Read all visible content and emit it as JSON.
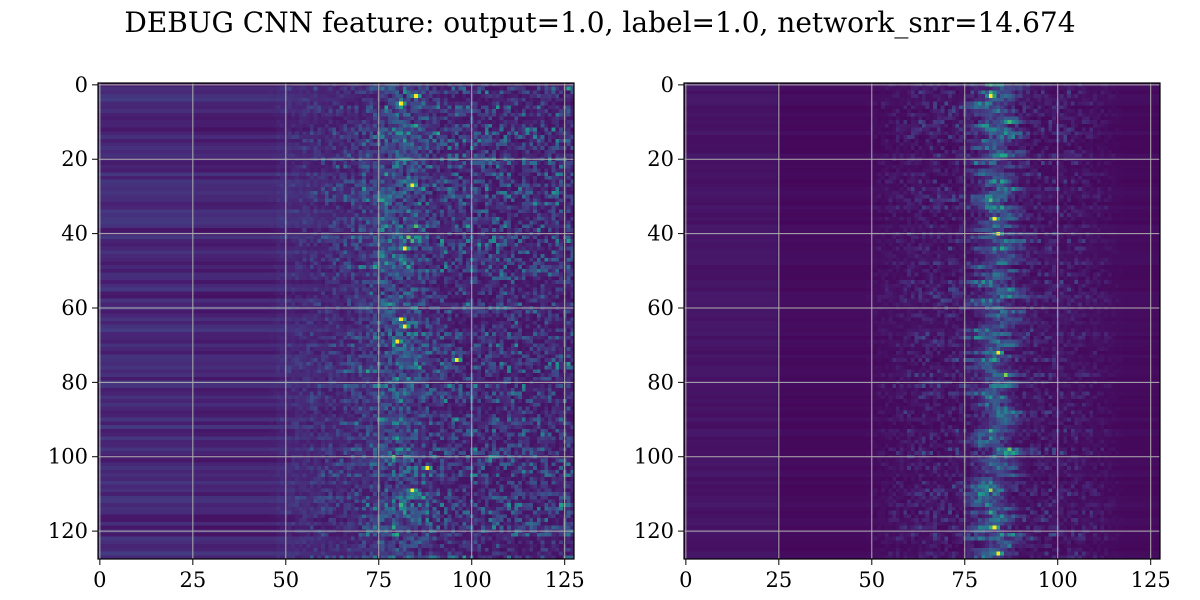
{
  "figure": {
    "title": "DEBUG CNN feature: output=1.0, label=1.0, network_snr=14.674"
  },
  "chart_data": [
    {
      "type": "heatmap",
      "title": "",
      "xlabel": "",
      "ylabel": "",
      "colormap": "viridis",
      "grid": true,
      "rows": 128,
      "cols": 128,
      "xlim": [
        -0.5,
        127.5
      ],
      "ylim": [
        127.5,
        -0.5
      ],
      "xticks": [
        0,
        25,
        50,
        75,
        100,
        125
      ],
      "yticks": [
        0,
        20,
        40,
        60,
        80,
        100,
        120
      ],
      "xtick_labels": [
        "0",
        "25",
        "50",
        "75",
        "100",
        "125"
      ],
      "ytick_labels": [
        "0",
        "20",
        "40",
        "60",
        "80",
        "100",
        "120"
      ],
      "bright_spots": [
        [
          81,
          5
        ],
        [
          85,
          3
        ],
        [
          84,
          27
        ],
        [
          82,
          44
        ],
        [
          81,
          63
        ],
        [
          82,
          65
        ],
        [
          80,
          69
        ],
        [
          88,
          103
        ],
        [
          84,
          109
        ],
        [
          96,
          74
        ]
      ]
    },
    {
      "type": "heatmap",
      "title": "",
      "xlabel": "",
      "ylabel": "",
      "colormap": "viridis",
      "grid": true,
      "rows": 128,
      "cols": 128,
      "xlim": [
        -0.5,
        127.5
      ],
      "ylim": [
        127.5,
        -0.5
      ],
      "xticks": [
        0,
        25,
        50,
        75,
        100,
        125
      ],
      "yticks": [
        0,
        20,
        40,
        60,
        80,
        100,
        120
      ],
      "xtick_labels": [
        "0",
        "25",
        "50",
        "75",
        "100",
        "125"
      ],
      "ytick_labels": [
        "0",
        "20",
        "40",
        "60",
        "80",
        "100",
        "120"
      ],
      "bright_spots": [
        [
          83,
          36
        ],
        [
          84,
          40
        ],
        [
          84,
          72
        ],
        [
          82,
          3
        ],
        [
          84,
          126
        ],
        [
          83,
          119
        ]
      ]
    }
  ]
}
